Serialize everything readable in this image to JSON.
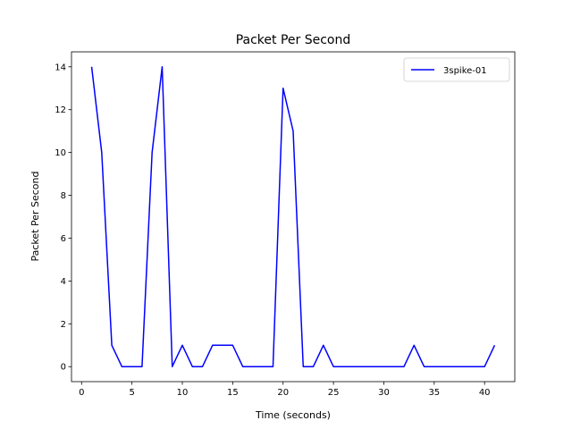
{
  "chart_data": {
    "type": "line",
    "title": "Packet Per Second",
    "xlabel": "Time (seconds)",
    "ylabel": "Packet Per Second",
    "xlim": [
      -1,
      43
    ],
    "ylim": [
      -0.7,
      14.7
    ],
    "xticks": [
      0,
      5,
      10,
      15,
      20,
      25,
      30,
      35,
      40
    ],
    "yticks": [
      0,
      2,
      4,
      6,
      8,
      10,
      12,
      14
    ],
    "grid": false,
    "legend_position": "top-right",
    "series": [
      {
        "name": "3spike-01",
        "color": "#0000ff",
        "x": [
          1,
          2,
          3,
          4,
          5,
          6,
          7,
          8,
          9,
          10,
          11,
          12,
          13,
          14,
          15,
          16,
          17,
          18,
          19,
          20,
          21,
          22,
          23,
          24,
          25,
          26,
          27,
          28,
          29,
          30,
          31,
          32,
          33,
          34,
          35,
          36,
          37,
          38,
          39,
          40,
          41
        ],
        "y": [
          14,
          10,
          1,
          0,
          0,
          0,
          10,
          14,
          0,
          1,
          0,
          0,
          1,
          1,
          1,
          0,
          0,
          0,
          0,
          13,
          11,
          0,
          0,
          1,
          0,
          0,
          0,
          0,
          0,
          0,
          0,
          0,
          1,
          0,
          0,
          0,
          0,
          0,
          0,
          0,
          1
        ]
      }
    ]
  }
}
